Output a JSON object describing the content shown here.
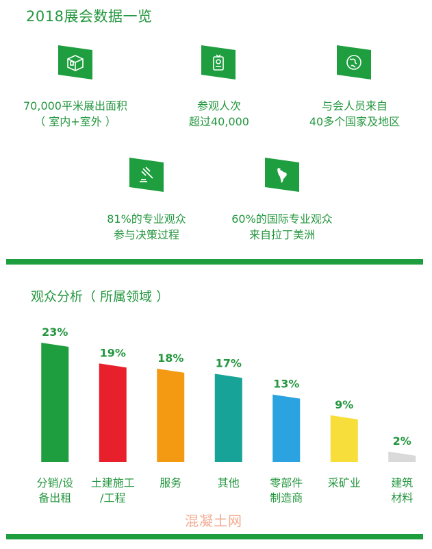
{
  "header": {
    "title": "2018展会数据一览"
  },
  "stats": [
    {
      "icon": "floor-plan-icon",
      "line1": "70,000平米展出面积",
      "line2": "（ 室内+室外 ）"
    },
    {
      "icon": "id-badge-icon",
      "line1": "参观人次",
      "line2": "超过40,000"
    },
    {
      "icon": "globe-icon",
      "line1": "与会人员来自",
      "line2": "40多个国家及地区"
    },
    {
      "icon": "gavel-icon",
      "line1": "81%的专业观众",
      "line2": "参与决策过程"
    },
    {
      "icon": "south-america-map-icon",
      "line1": "60%的国际专业观众",
      "line2": "来自拉丁美洲"
    }
  ],
  "section": {
    "title": "观众分析（ 所属领域 ）"
  },
  "chart_data": {
    "type": "bar",
    "categories": [
      [
        "分销/设",
        "备出租"
      ],
      [
        "土建施工",
        "/工程"
      ],
      [
        "服务"
      ],
      [
        "其他"
      ],
      [
        "零部件",
        "制造商"
      ],
      [
        "采矿业"
      ],
      [
        "建筑",
        "材料"
      ]
    ],
    "values": [
      23,
      19,
      18,
      17,
      13,
      9,
      2
    ],
    "value_labels": [
      "23%",
      "19%",
      "18%",
      "17%",
      "13%",
      "9%",
      "2%"
    ],
    "colors": [
      "#1e9e3e",
      "#e8202b",
      "#f39a12",
      "#17a398",
      "#2aa3e0",
      "#f7de3a",
      "#d9d9d9"
    ],
    "ylim": [
      0,
      23
    ],
    "grid": false,
    "legend": "none"
  },
  "watermark": "混凝土网",
  "colors": {
    "brand_green": "#1e9e3e"
  }
}
